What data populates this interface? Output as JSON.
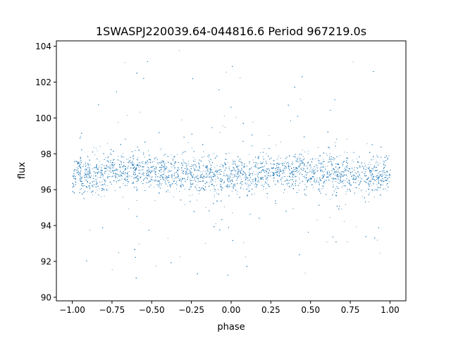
{
  "chart_data": {
    "type": "scatter",
    "title": "1SWASPJ220039.64-044816.6 Period 967219.0s",
    "xlabel": "phase",
    "ylabel": "flux",
    "xlim": [
      -1.1,
      1.1
    ],
    "ylim": [
      89.8,
      104.3
    ],
    "grid": false,
    "legend": "none",
    "marker_color": "#1f77b4",
    "x_ticks": [
      {
        "value": -1.0,
        "label": "−1.00"
      },
      {
        "value": -0.75,
        "label": "−0.75"
      },
      {
        "value": -0.5,
        "label": "−0.50"
      },
      {
        "value": -0.25,
        "label": "−0.25"
      },
      {
        "value": 0.0,
        "label": "0.00"
      },
      {
        "value": 0.25,
        "label": "0.25"
      },
      {
        "value": 0.5,
        "label": "0.50"
      },
      {
        "value": 0.75,
        "label": "0.75"
      },
      {
        "value": 1.0,
        "label": "1.00"
      }
    ],
    "y_ticks": [
      {
        "value": 90,
        "label": "90"
      },
      {
        "value": 92,
        "label": "92"
      },
      {
        "value": 94,
        "label": "94"
      },
      {
        "value": 96,
        "label": "96"
      },
      {
        "value": 98,
        "label": "98"
      },
      {
        "value": 100,
        "label": "100"
      },
      {
        "value": 102,
        "label": "102"
      },
      {
        "value": 104,
        "label": "104"
      }
    ],
    "series": [
      {
        "point_cloud": {
          "x_range": [
            -1.0,
            1.0
          ],
          "y_range": [
            90.4,
            104.0
          ],
          "core_band": [
            95.0,
            99.0
          ],
          "median_flux": 96.9
        },
        "x": [
          -1.0,
          -0.98,
          -0.96,
          -0.94,
          -0.92,
          -0.9,
          -0.88,
          -0.86,
          -0.84,
          -0.82,
          -0.8,
          -0.78,
          -0.76,
          -0.74,
          -0.72,
          -0.7,
          -0.68,
          -0.66,
          -0.64,
          -0.62,
          -0.6,
          -0.58,
          -0.56,
          -0.54,
          -0.52,
          -0.5,
          -0.48,
          -0.46,
          -0.44,
          -0.42,
          -0.4,
          -0.38,
          -0.36,
          -0.34,
          -0.32,
          -0.3,
          -0.28,
          -0.26,
          -0.24,
          -0.22,
          -0.2,
          -0.18,
          -0.16,
          -0.14,
          -0.12,
          -0.1,
          -0.08,
          -0.06,
          -0.04,
          -0.02,
          0.0,
          0.02,
          0.04,
          0.06,
          0.08,
          0.1,
          0.12,
          0.14,
          0.16,
          0.18,
          0.2,
          0.22,
          0.24,
          0.26,
          0.28,
          0.3,
          0.32,
          0.34,
          0.36,
          0.38,
          0.4,
          0.42,
          0.44,
          0.46,
          0.48,
          0.5,
          0.52,
          0.54,
          0.56,
          0.58,
          0.6,
          0.62,
          0.64,
          0.66,
          0.68,
          0.7,
          0.72,
          0.74,
          0.76,
          0.78,
          0.8,
          0.82,
          0.84,
          0.86,
          0.88,
          0.9,
          0.92,
          0.94,
          0.96,
          0.98,
          1.0
        ],
        "y": [
          96.5,
          96.9,
          97.1,
          96.7,
          97.0,
          96.8,
          96.4,
          96.9,
          97.2,
          96.6,
          96.8,
          97.0,
          97.3,
          97.1,
          96.9,
          97.2,
          97.0,
          96.8,
          97.1,
          97.3,
          96.9,
          97.0,
          97.2,
          96.8,
          97.1,
          96.9,
          97.0,
          96.7,
          97.2,
          97.0,
          96.8,
          97.1,
          96.9,
          97.0,
          96.6,
          97.1,
          96.9,
          96.7,
          97.0,
          96.8,
          96.6,
          96.5,
          96.9,
          97.0,
          96.8,
          96.6,
          96.9,
          96.7,
          97.0,
          96.8,
          96.7,
          96.9,
          97.0,
          96.8,
          96.7,
          96.5,
          96.8,
          97.0,
          96.9,
          97.1,
          97.0,
          96.8,
          97.1,
          97.3,
          97.0,
          97.2,
          96.9,
          97.1,
          97.0,
          96.8,
          97.2,
          97.0,
          97.3,
          97.1,
          96.9,
          97.0,
          97.2,
          96.8,
          97.0,
          97.1,
          96.9,
          97.2,
          97.0,
          96.8,
          97.1,
          96.9,
          97.0,
          96.8,
          97.1,
          96.7,
          96.9,
          97.0,
          96.8,
          96.6,
          96.9,
          97.0,
          96.8,
          96.7,
          97.0,
          96.6,
          96.8
        ]
      }
    ]
  }
}
